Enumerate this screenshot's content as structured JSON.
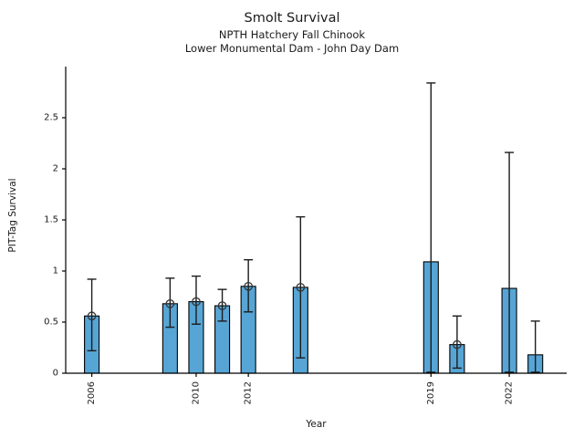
{
  "header": {
    "title": "Smolt Survival",
    "subtitle_line1": "NPTH Hatchery Fall Chinook",
    "subtitle_line2": "Lower Monumental Dam - John Day Dam"
  },
  "chart_data": {
    "type": "bar",
    "title": "Smolt Survival",
    "subtitle": [
      "NPTH Hatchery Fall Chinook",
      "Lower Monumental Dam - John Day Dam"
    ],
    "xlabel": "Year",
    "ylabel": "PIT-Tag Survival",
    "xlim": [
      2005.0,
      2024.2
    ],
    "ylim": [
      0,
      3.0
    ],
    "x_ticks": [
      "2006",
      "2010",
      "2012",
      "2019",
      "2022"
    ],
    "x_tick_rotation": 90,
    "y_ticks": [
      "0",
      "0.5",
      "1",
      "1.5",
      "2",
      "2.5"
    ],
    "grid": false,
    "legend": "none",
    "bar_color": "#57a5d5",
    "bar_edge_color": "#000000",
    "error_color": "#1c1c1c",
    "marker_style": "open-circle",
    "bars": [
      {
        "year": 2006,
        "value": 0.56,
        "ci_low": 0.22,
        "ci_high": 0.92,
        "marker": true
      },
      {
        "year": 2009,
        "value": 0.68,
        "ci_low": 0.45,
        "ci_high": 0.93,
        "marker": true
      },
      {
        "year": 2010,
        "value": 0.7,
        "ci_low": 0.48,
        "ci_high": 0.95,
        "marker": true
      },
      {
        "year": 2011,
        "value": 0.66,
        "ci_low": 0.51,
        "ci_high": 0.82,
        "marker": true
      },
      {
        "year": 2012,
        "value": 0.85,
        "ci_low": 0.6,
        "ci_high": 1.11,
        "marker": true
      },
      {
        "year": 2014,
        "value": 0.84,
        "ci_low": 0.15,
        "ci_high": 1.53,
        "marker": true
      },
      {
        "year": 2019,
        "value": 1.09,
        "ci_low": 0.01,
        "ci_high": 2.84,
        "marker": false
      },
      {
        "year": 2020,
        "value": 0.28,
        "ci_low": 0.05,
        "ci_high": 0.56,
        "marker": true
      },
      {
        "year": 2022,
        "value": 0.83,
        "ci_low": 0.01,
        "ci_high": 2.16,
        "marker": false
      },
      {
        "year": 2023,
        "value": 0.18,
        "ci_low": 0.01,
        "ci_high": 0.51,
        "marker": false
      }
    ]
  }
}
